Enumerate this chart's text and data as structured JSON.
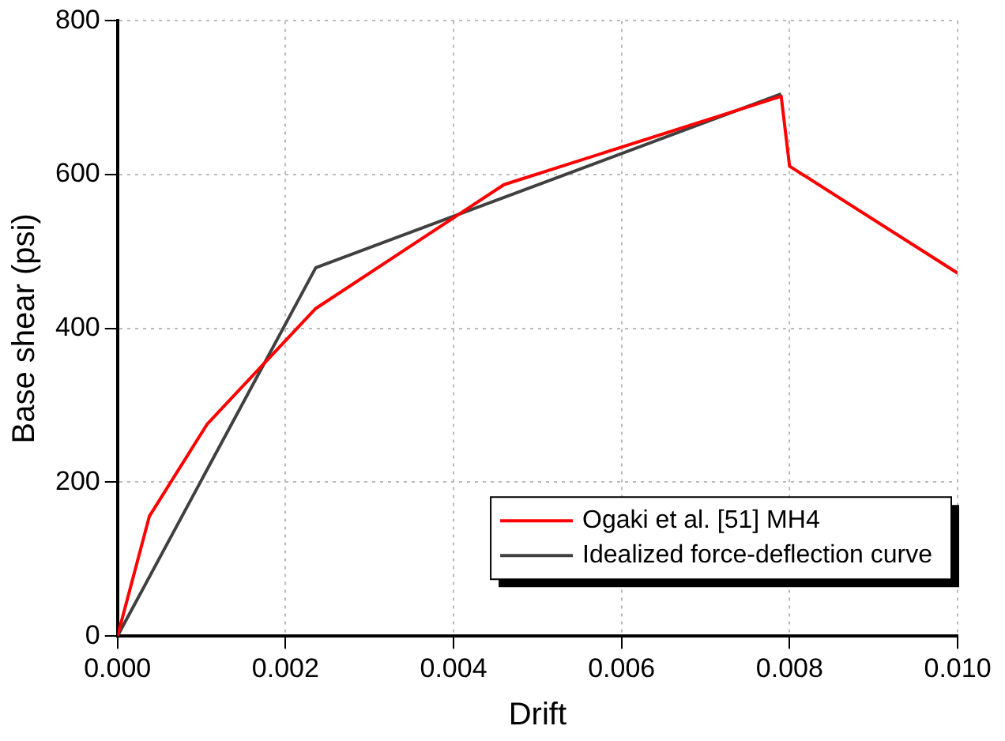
{
  "chart_data": {
    "type": "line",
    "xlabel": "Drift",
    "ylabel": "Base shear (psi)",
    "series": [
      {
        "name": "Ogaki et al. [51] MH4",
        "color": "#ff0000",
        "x": [
          0,
          0.00038,
          0.00107,
          0.00236,
          0.0046,
          0.0079,
          0.008,
          0.01
        ],
        "values": [
          0,
          156,
          276,
          426,
          587,
          702,
          611,
          472
        ]
      },
      {
        "name": "Idealized force-deflection curve",
        "color": "#404040",
        "x": [
          0,
          0.00236,
          0.0079
        ],
        "values": [
          0,
          479,
          705
        ]
      }
    ],
    "xlim": [
      0,
      0.01
    ],
    "xticks": [
      {
        "value": 0,
        "label": "0.000"
      },
      {
        "value": 0.002,
        "label": "0.002"
      },
      {
        "value": 0.004,
        "label": "0.004"
      },
      {
        "value": 0.006,
        "label": "0.006"
      },
      {
        "value": 0.008,
        "label": "0.008"
      },
      {
        "value": 0.01,
        "label": "0.010"
      }
    ],
    "ylim": [
      0,
      800
    ],
    "yticks": [
      0,
      200,
      400,
      600,
      800
    ],
    "grid": true,
    "legend": "bottom right",
    "marker": "none",
    "line_style": "solid"
  }
}
